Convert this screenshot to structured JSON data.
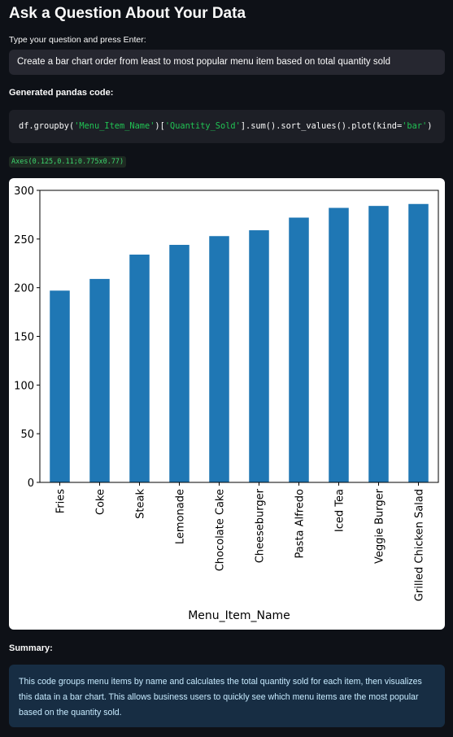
{
  "app": {
    "title": "Ask a Question About Your Data"
  },
  "question_input": {
    "label": "Type your question and press Enter:",
    "value": "Create a bar chart order from least to most popular menu item based on total quantity sold"
  },
  "code_section": {
    "label": "Generated pandas code:",
    "code_parts": {
      "p1": "df.groupby(",
      "s1": "'Menu_Item_Name'",
      "p2": ")[",
      "s2": "'Quantity_Sold'",
      "p3": "].sum().sort_values().plot(kind=",
      "s3": "'bar'",
      "p4": ")"
    }
  },
  "axes_output": "Axes(0.125,0.11;0.775x0.77)",
  "chart_data": {
    "type": "bar",
    "categories": [
      "Fries",
      "Coke",
      "Steak",
      "Lemonade",
      "Chocolate Cake",
      "Cheeseburger",
      "Pasta Alfredo",
      "Iced Tea",
      "Veggie Burger",
      "Grilled Chicken Salad"
    ],
    "values": [
      197,
      209,
      234,
      244,
      253,
      259,
      272,
      282,
      284,
      286
    ],
    "xlabel": "Menu_Item_Name",
    "ylabel": "",
    "ylim": [
      0,
      300
    ],
    "yticks": [
      0,
      50,
      100,
      150,
      200,
      250,
      300
    ],
    "grid": false,
    "bar_color": "#1f77b4"
  },
  "summary": {
    "label": "Summary:",
    "text": "This code groups menu items by name and calculates the total quantity sold for each item, then visualizes this data in a bar chart. This allows business users to quickly see which menu items are the most popular based on the quantity sold."
  },
  "colors": {
    "background": "#0e1117",
    "input_bg": "#262730",
    "summary_bg": "#172d43",
    "summary_text": "#c7ebff",
    "code_string": "#21c354"
  }
}
